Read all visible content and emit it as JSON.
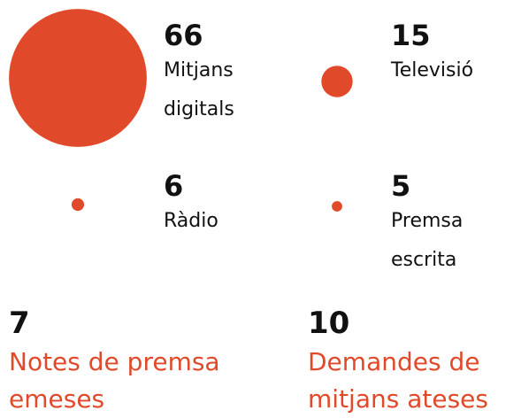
{
  "color": "#e04a2a",
  "items": [
    {
      "value": 66,
      "label": "Mitjans digitals"
    },
    {
      "value": 15,
      "label": "Televisió"
    },
    {
      "value": 6,
      "label": "Ràdio"
    },
    {
      "value": 5,
      "label": "Premsa escrita"
    }
  ],
  "stats": [
    {
      "value": 7,
      "label": "Notes de premsa emeses"
    },
    {
      "value": 10,
      "label": "Demandes de mitjans ateses"
    }
  ]
}
